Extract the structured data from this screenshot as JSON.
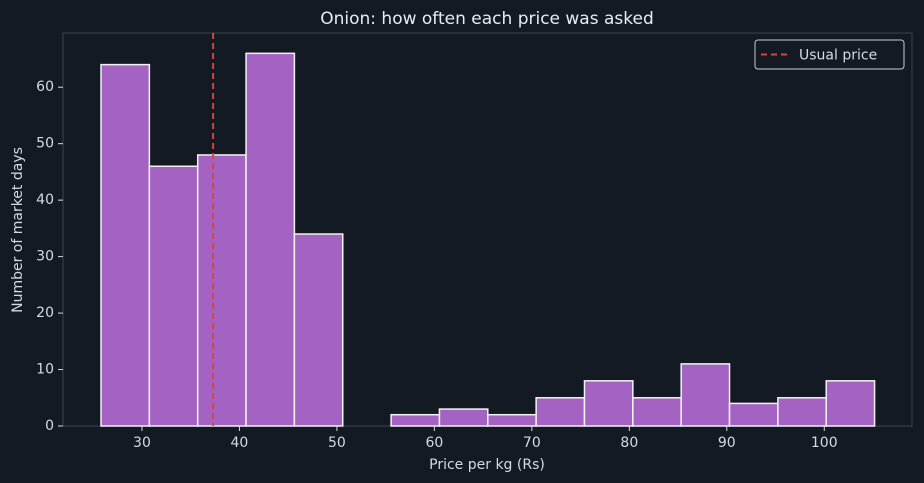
{
  "chart_data": {
    "type": "histogram",
    "title": "Onion: how often each price was asked",
    "x_label": "Price per kg (Rs)",
    "y_label": "Number of market days",
    "bins": [
      25.8,
      30.76,
      35.72,
      40.68,
      45.64,
      50.6,
      55.56,
      60.52,
      65.48,
      70.44,
      75.4,
      80.36,
      85.32,
      90.28,
      95.24,
      100.2,
      105.16
    ],
    "values": [
      64,
      46,
      48,
      66,
      34,
      0,
      2,
      3,
      2,
      5,
      8,
      5,
      11,
      4,
      5,
      8
    ],
    "color": "#a463c2",
    "reference_line": {
      "value": 37.3,
      "label": "Usual price",
      "color": "#d9453d"
    },
    "xlim": [
      21.9,
      109.0
    ],
    "xticks": [
      30,
      40,
      50,
      60,
      70,
      80,
      90,
      100
    ],
    "ylim": [
      0,
      69.6
    ],
    "yticks": [
      0,
      10,
      20,
      30,
      40,
      50,
      60
    ],
    "legend_position": "upper right"
  }
}
